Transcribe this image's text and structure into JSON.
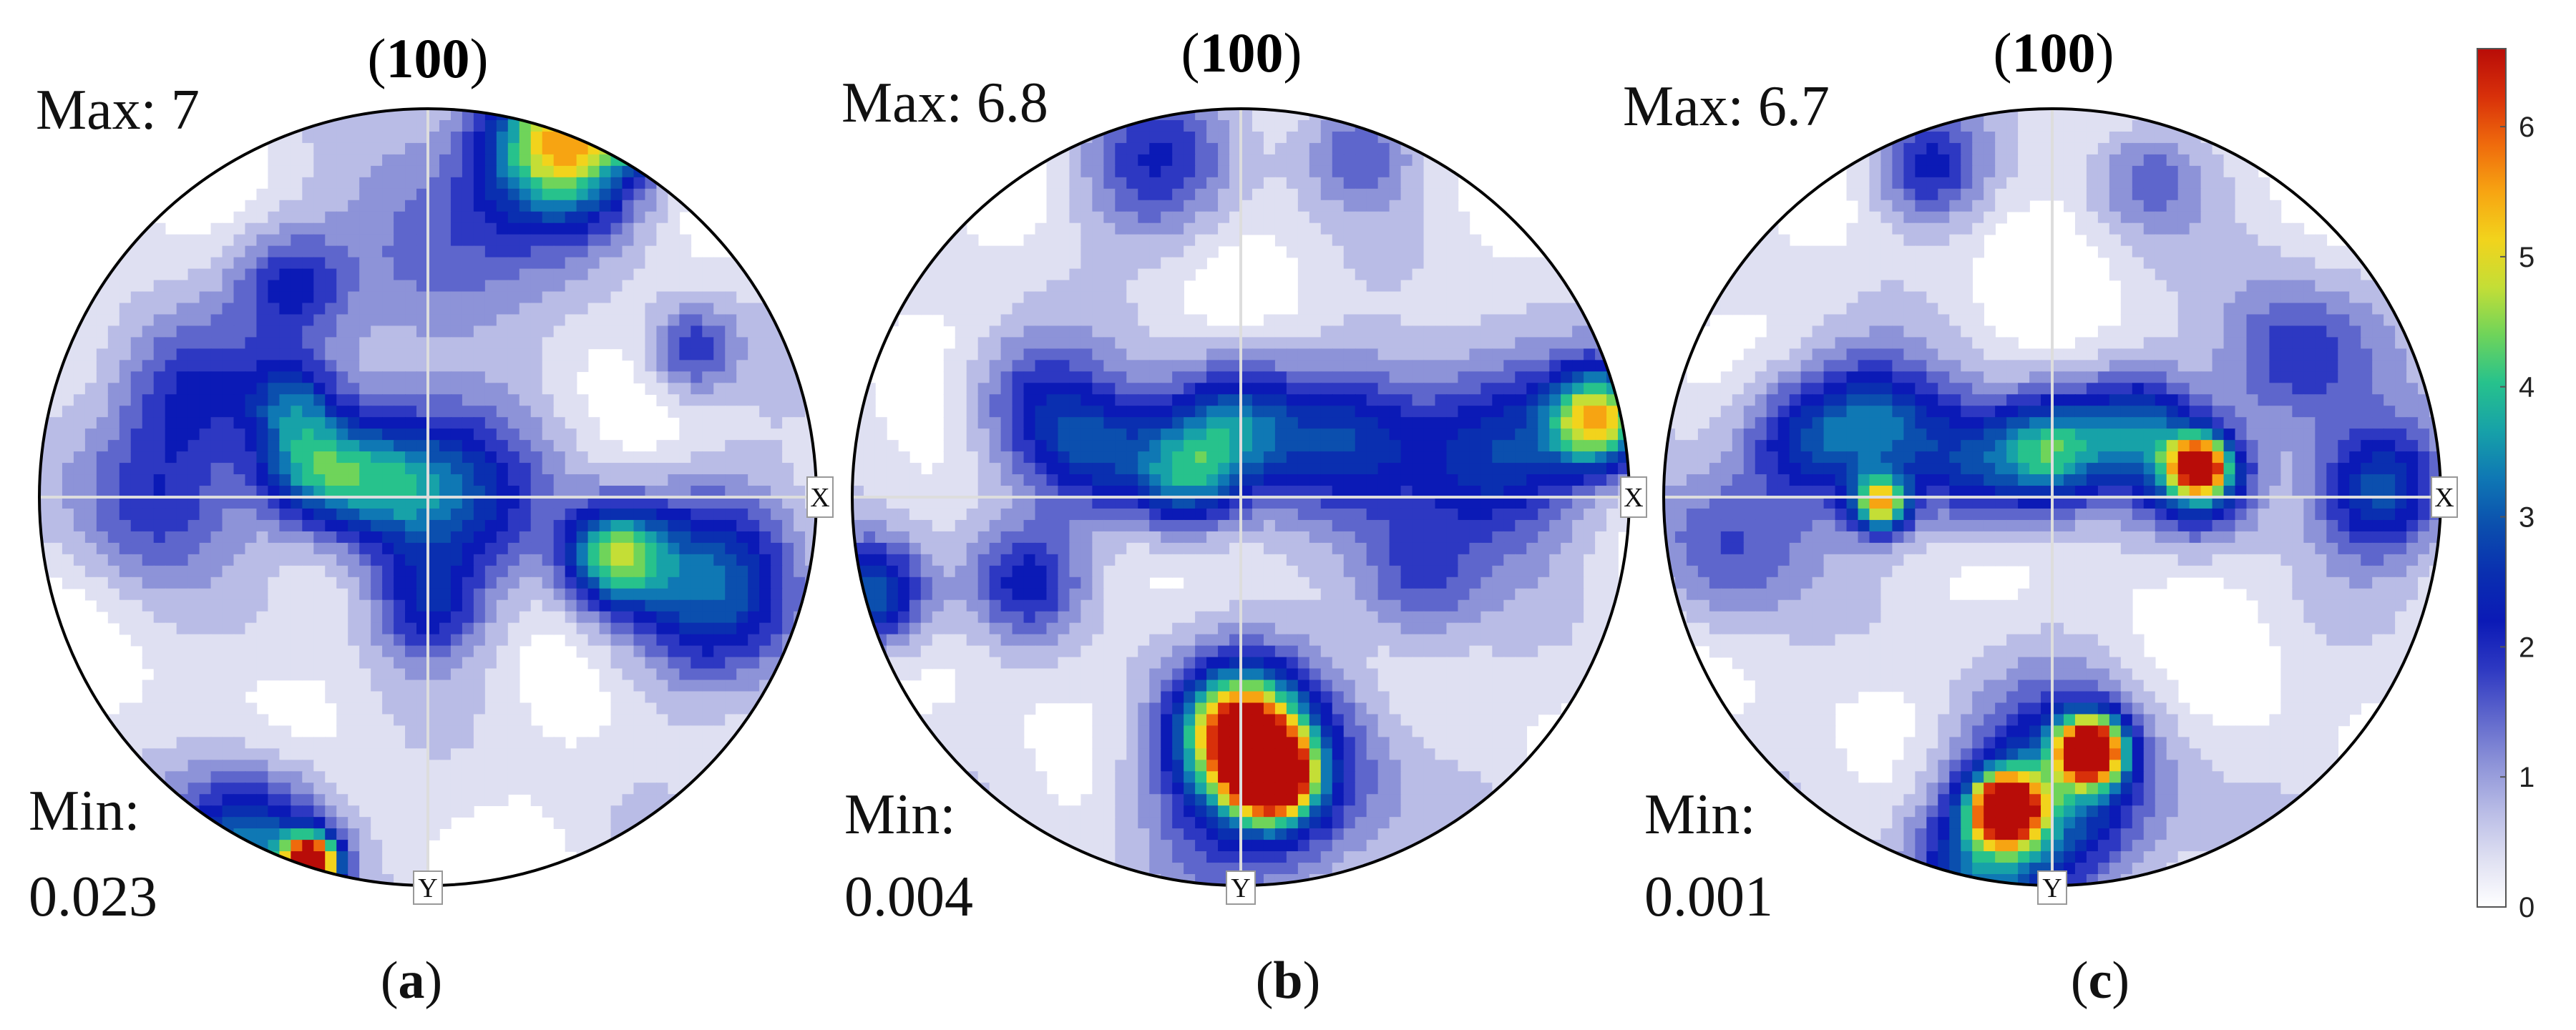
{
  "colors": {
    "scale": [
      "#ffffff",
      "#dfe0f2",
      "#b9bce6",
      "#8d93d8",
      "#5e66cc",
      "#2d38c2",
      "#0b1ab6",
      "#0a2fb0",
      "#0b4fae",
      "#0f78b4",
      "#17a2a8",
      "#27c28c",
      "#6fd45a",
      "#c4de36",
      "#f2d31c",
      "#f7a412",
      "#ef6a0c",
      "#d8300a",
      "#b80c08"
    ],
    "outline": "#000000",
    "crosshair": "#dddddd"
  },
  "chart_data": {
    "type": "heatmap",
    "colorbar": {
      "min": 0,
      "max": 6.6,
      "ticks": [
        "0",
        "1",
        "2",
        "3",
        "4",
        "5",
        "6"
      ]
    },
    "plots": [
      {
        "id": "a",
        "title_prefix": "(",
        "title_bold": "100",
        "title_suffix": ")",
        "max_label": "Max: 7",
        "min_label": "Min:",
        "min_value": "0.023",
        "caption_open": "(",
        "caption_letter": "a",
        "caption_close": ")",
        "x_label": "X",
        "y_label": "Y",
        "blobs": [
          {
            "x": 0.35,
            "y": 0.92,
            "v": 5.2,
            "s": 0.14
          },
          {
            "x": 0.55,
            "y": 0.95,
            "v": 6.8,
            "s": 0.05
          },
          {
            "x": 0.02,
            "y": 0.62,
            "v": 1.5,
            "s": 0.18
          },
          {
            "x": -0.35,
            "y": 0.55,
            "v": 1.5,
            "s": 0.1
          },
          {
            "x": -0.62,
            "y": 0.28,
            "v": 1.8,
            "s": 0.14
          },
          {
            "x": -0.35,
            "y": 0.25,
            "v": 1.8,
            "s": 0.08
          },
          {
            "x": 0.68,
            "y": 0.38,
            "v": 1.6,
            "s": 0.08
          },
          {
            "x": -0.3,
            "y": 0.08,
            "v": 3.0,
            "s": 0.1
          },
          {
            "x": -0.12,
            "y": 0.03,
            "v": 2.6,
            "s": 0.12
          },
          {
            "x": 0.08,
            "y": 0.0,
            "v": 2.0,
            "s": 0.16
          },
          {
            "x": 0.48,
            "y": -0.15,
            "v": 3.6,
            "s": 0.09
          },
          {
            "x": 0.72,
            "y": -0.22,
            "v": 2.6,
            "s": 0.17
          },
          {
            "x": 0.0,
            "y": -0.28,
            "v": 1.8,
            "s": 0.1
          },
          {
            "x": -0.72,
            "y": 0.0,
            "v": 1.5,
            "s": 0.15
          },
          {
            "x": -0.45,
            "y": -0.9,
            "v": 3.0,
            "s": 0.14
          },
          {
            "x": -0.3,
            "y": -0.94,
            "v": 6.6,
            "s": 0.05
          }
        ]
      },
      {
        "id": "b",
        "title_prefix": "(",
        "title_bold": "100",
        "title_suffix": ")",
        "max_label": "Max: 6.8",
        "min_label": "Min:",
        "min_value": "0.004",
        "caption_open": "(",
        "caption_letter": "b",
        "caption_close": ")",
        "x_label": "X",
        "y_label": "Y",
        "blobs": [
          {
            "x": -0.22,
            "y": 0.85,
            "v": 1.6,
            "s": 0.14
          },
          {
            "x": 0.3,
            "y": 0.9,
            "v": 1.2,
            "s": 0.1
          },
          {
            "x": -0.55,
            "y": 0.25,
            "v": 1.4,
            "s": 0.12
          },
          {
            "x": -0.38,
            "y": 0.12,
            "v": 2.2,
            "s": 0.12
          },
          {
            "x": -0.15,
            "y": 0.05,
            "v": 2.8,
            "s": 0.1
          },
          {
            "x": -0.02,
            "y": 0.18,
            "v": 2.6,
            "s": 0.12
          },
          {
            "x": 0.28,
            "y": 0.15,
            "v": 2.0,
            "s": 0.14
          },
          {
            "x": 0.65,
            "y": 0.12,
            "v": 2.6,
            "s": 0.16
          },
          {
            "x": 0.92,
            "y": 0.2,
            "v": 4.6,
            "s": 0.09
          },
          {
            "x": -0.95,
            "y": -0.25,
            "v": 3.0,
            "s": 0.1
          },
          {
            "x": -0.55,
            "y": -0.22,
            "v": 1.6,
            "s": 0.1
          },
          {
            "x": 0.45,
            "y": -0.22,
            "v": 1.4,
            "s": 0.12
          },
          {
            "x": 0.05,
            "y": -0.72,
            "v": 2.8,
            "s": 0.2
          },
          {
            "x": 0.08,
            "y": -0.72,
            "v": 6.7,
            "s": 0.07
          },
          {
            "x": 0.0,
            "y": -0.6,
            "v": 4.8,
            "s": 0.1
          }
        ]
      },
      {
        "id": "c",
        "title_prefix": "(",
        "title_bold": "100",
        "title_suffix": ")",
        "max_label": "Max: 6.7",
        "min_label": "Min:",
        "min_value": "0.001",
        "caption_open": "(",
        "caption_letter": "c",
        "caption_close": ")",
        "x_label": "X",
        "y_label": "Y",
        "blobs": [
          {
            "x": -0.32,
            "y": 0.85,
            "v": 1.8,
            "s": 0.1
          },
          {
            "x": 0.25,
            "y": 0.82,
            "v": 1.0,
            "s": 0.1
          },
          {
            "x": -0.65,
            "y": 0.15,
            "v": 2.0,
            "s": 0.12
          },
          {
            "x": -0.45,
            "y": 0.18,
            "v": 2.4,
            "s": 0.12
          },
          {
            "x": -0.2,
            "y": 0.08,
            "v": 2.2,
            "s": 0.12
          },
          {
            "x": 0.0,
            "y": 0.12,
            "v": 3.2,
            "s": 0.1
          },
          {
            "x": 0.22,
            "y": 0.18,
            "v": 2.4,
            "s": 0.1
          },
          {
            "x": 0.38,
            "y": 0.05,
            "v": 3.0,
            "s": 0.1
          },
          {
            "x": 0.62,
            "y": 0.35,
            "v": 1.8,
            "s": 0.14
          },
          {
            "x": 0.85,
            "y": 0.02,
            "v": 2.6,
            "s": 0.12
          },
          {
            "x": -0.44,
            "y": -0.02,
            "v": 4.4,
            "s": 0.05
          },
          {
            "x": 0.38,
            "y": 0.08,
            "v": 4.6,
            "s": 0.05
          },
          {
            "x": -0.85,
            "y": -0.15,
            "v": 1.4,
            "s": 0.14
          },
          {
            "x": -0.12,
            "y": -0.8,
            "v": 6.5,
            "s": 0.06
          },
          {
            "x": 0.1,
            "y": -0.65,
            "v": 6.6,
            "s": 0.06
          },
          {
            "x": 0.0,
            "y": -0.78,
            "v": 3.0,
            "s": 0.18
          },
          {
            "x": -0.2,
            "y": -0.95,
            "v": 2.0,
            "s": 0.12
          }
        ]
      }
    ]
  }
}
